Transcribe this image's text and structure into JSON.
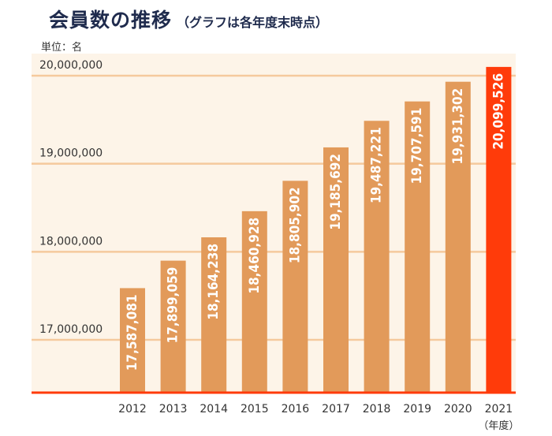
{
  "title": "会員数の推移",
  "subtitle": "（グラフは各年度末時点）",
  "unit_label": "単位：名",
  "x_unit_label": "（年度）",
  "colors": {
    "bar": "#E29A5A",
    "highlight_bar": "#FF3B0A",
    "plot_bg": "#FDF4E8",
    "gridline": "#F5C99D",
    "baseline": "#FF3B0A",
    "title": "#1f2b4d"
  },
  "chart_data": {
    "type": "bar",
    "categories": [
      "2012",
      "2013",
      "2014",
      "2015",
      "2016",
      "2017",
      "2018",
      "2019",
      "2020",
      "2021"
    ],
    "values": [
      17587081,
      17899059,
      18164238,
      18460928,
      18805902,
      19185692,
      19487221,
      19707591,
      19931302,
      20099526
    ],
    "value_labels": [
      "17,587,081",
      "17,899,059",
      "18,164,238",
      "18,460,928",
      "18,805,902",
      "19,185,692",
      "19,487,221",
      "19,707,591",
      "19,931,302",
      "20,099,526"
    ],
    "y_ticks": [
      17000000,
      18000000,
      19000000,
      20000000
    ],
    "y_tick_labels": [
      "17,000,000",
      "18,000,000",
      "19,000,000",
      "20,000,000"
    ],
    "ylim": [
      16400000,
      20000000
    ],
    "highlight_index": 9,
    "grid": true,
    "legend": "none"
  }
}
